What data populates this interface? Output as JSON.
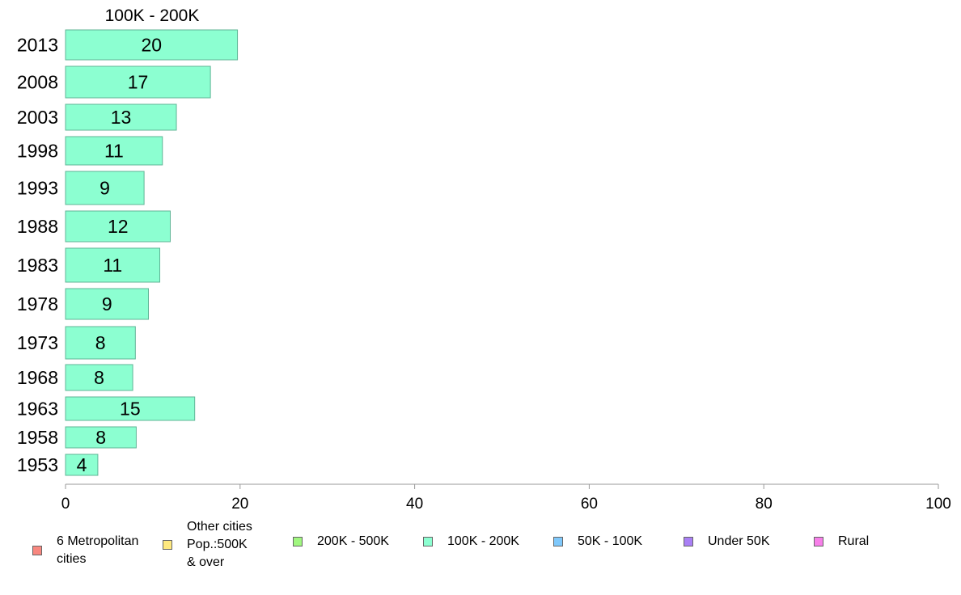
{
  "chart_data": {
    "type": "bar",
    "orientation": "horizontal",
    "title": "100K - 200K",
    "categories": [
      "2013",
      "2008",
      "2003",
      "1998",
      "1993",
      "1988",
      "1983",
      "1978",
      "1973",
      "1968",
      "1963",
      "1958",
      "1953"
    ],
    "series": [
      {
        "name": "100K - 200K",
        "color": "#8cffd1",
        "values": [
          19.7,
          16.6,
          12.7,
          11.1,
          9.0,
          12.0,
          10.8,
          9.5,
          8.0,
          7.7,
          14.8,
          8.1,
          3.7
        ]
      }
    ],
    "data_labels": [
      "20",
      "17",
      "13",
      "11",
      "9",
      "12",
      "11",
      "9",
      "8",
      "8",
      "15",
      "8",
      "4"
    ],
    "xlim": [
      0,
      100
    ],
    "xticks": [
      "0",
      "20",
      "40",
      "60",
      "80",
      "100"
    ],
    "grid": false,
    "legend_position": "bottom",
    "legend": [
      {
        "label": "6 Metropolitan\n cities",
        "color": "#f8877f"
      },
      {
        "label": "Other cities\nPop.:500K\n & over",
        "color": "#ffe97f"
      },
      {
        "label": "200K - 500K",
        "color": "#a0f77f"
      },
      {
        "label": "100K - 200K",
        "color": "#8cffd1"
      },
      {
        "label": "50K - 100K",
        "color": "#7fc8fb"
      },
      {
        "label": "Under 50K",
        "color": "#a97ff5"
      },
      {
        "label": "Rural",
        "color": "#f77fe9"
      }
    ]
  }
}
